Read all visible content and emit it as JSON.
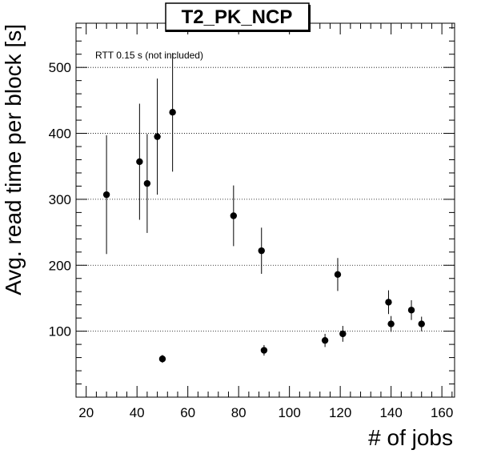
{
  "chart_data": {
    "type": "scatter",
    "title": "T2_PK_NCP",
    "annotation": "RTT 0.15 s (not included)",
    "xlabel": "# of jobs",
    "ylabel": "Avg. read time per block [s]",
    "xlim": [
      16,
      165
    ],
    "ylim": [
      0,
      567
    ],
    "xticks": [
      20,
      40,
      60,
      80,
      100,
      120,
      140,
      160
    ],
    "yticks": [
      100,
      200,
      300,
      400,
      500
    ],
    "grid": "horizontal-dotted",
    "points": [
      {
        "x": 28,
        "y": 307,
        "err": 90
      },
      {
        "x": 41,
        "y": 357,
        "err": 88
      },
      {
        "x": 44,
        "y": 324,
        "err": 75
      },
      {
        "x": 48,
        "y": 395,
        "err": 88
      },
      {
        "x": 50,
        "y": 58,
        "err": 6
      },
      {
        "x": 54,
        "y": 432,
        "err": 90
      },
      {
        "x": 78,
        "y": 275,
        "err": 46
      },
      {
        "x": 89,
        "y": 222,
        "err": 35
      },
      {
        "x": 90,
        "y": 71,
        "err": 8
      },
      {
        "x": 114,
        "y": 86,
        "err": 10
      },
      {
        "x": 119,
        "y": 186,
        "err": 25
      },
      {
        "x": 121,
        "y": 96,
        "err": 12
      },
      {
        "x": 139,
        "y": 144,
        "err": 18
      },
      {
        "x": 140,
        "y": 111,
        "err": 12
      },
      {
        "x": 148,
        "y": 132,
        "err": 15
      },
      {
        "x": 152,
        "y": 111,
        "err": 11
      }
    ]
  }
}
